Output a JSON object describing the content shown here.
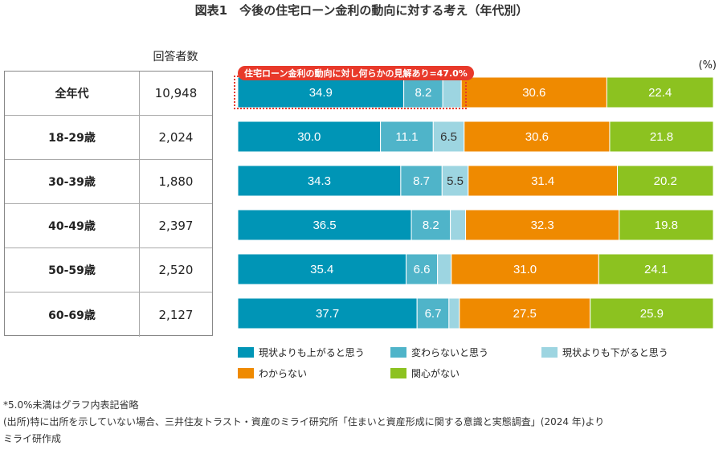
{
  "title": "図表1　今後の住宅ローン金利の動向に対する考え（年代別）",
  "count_header": "回答者数",
  "unit": "(%)",
  "highlight": "住宅ローン金利の動向に対し何らかの見解あり=47.0%",
  "notes": [
    "*5.0%未満はグラフ内表記省略",
    "(出所)特に出所を示していない場合、三井住友トラスト・資産のミライ研究所「住まいと資産形成に関する意識と実態調査」(2024 年)より",
    "ミライ研作成"
  ],
  "chart_data": {
    "type": "bar",
    "orientation": "horizontal-stacked-100",
    "categories": [
      "全年代",
      "18-29歳",
      "30-39歳",
      "40-49歳",
      "50-59歳",
      "60-69歳"
    ],
    "respondents": [
      "10,948",
      "2,024",
      "1,880",
      "2,397",
      "2,520",
      "2,127"
    ],
    "label_threshold": 5.0,
    "series": [
      {
        "name": "現状よりも上がると思う",
        "color": "#0095b6",
        "values": [
          34.9,
          30.0,
          34.3,
          36.5,
          35.4,
          37.7
        ]
      },
      {
        "name": "変わらないと思う",
        "color": "#4fb4c9",
        "values": [
          8.2,
          11.1,
          8.7,
          8.2,
          6.6,
          6.7
        ]
      },
      {
        "name": "現状よりも下がると思う",
        "color": "#9dd5e1",
        "values": [
          3.9,
          6.5,
          5.5,
          3.2,
          2.9,
          2.2
        ]
      },
      {
        "name": "わからない",
        "color": "#ef8a00",
        "values": [
          30.6,
          30.6,
          31.4,
          32.3,
          31.0,
          27.5
        ]
      },
      {
        "name": "関心がない",
        "color": "#8cc220",
        "values": [
          22.4,
          21.8,
          20.2,
          19.8,
          24.1,
          25.9
        ]
      }
    ]
  }
}
